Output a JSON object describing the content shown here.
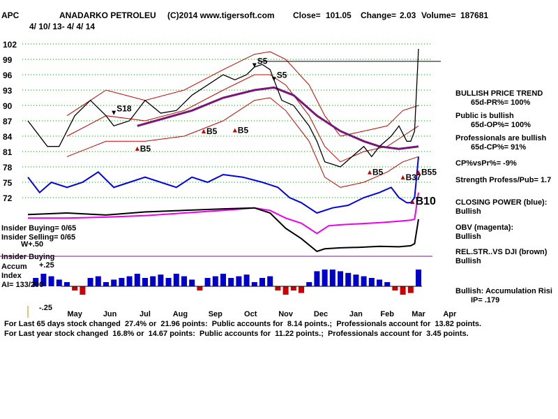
{
  "header": {
    "ticker": "APC",
    "company": "ANADARKO PETROLEU",
    "site": "(C)2014 www.tigersoft.com",
    "close_label": "Close=",
    "close_value": "101.05",
    "change_label": "Change=",
    "change_value": "2.03",
    "volume_label": "Volume=",
    "volume_value": "187681",
    "date_range": "4/ 10/ 13- 4/ 4/ 14"
  },
  "colors": {
    "price": "#000000",
    "bands": "#cc0000",
    "ma_long": "#7a147a",
    "closing_power": "#0000ee",
    "obv": "#ee00ee",
    "relstr": "#000000",
    "accum_pos": "#0000cc",
    "accum_neg": "#cc0000",
    "grid": "#009900",
    "signal": "#cc0000"
  },
  "side_panel": {
    "price_trend_title": "BULLISH PRICE TREND",
    "price_trend_value": "65d-PR%= 100%",
    "public_title": "Public is bullish",
    "public_value": "65d-OP%= 100%",
    "pros_title": "Professionals are bullish",
    "pros_value": "65d-CP%= 91%",
    "cpvspr": "CP%vsPr%= -9%",
    "strength": "Strength Profess/Pub= 1.7",
    "closing_power_title": "CLOSING POWER (blue):",
    "closing_power_value": "Bullish",
    "obv_title": "OBV (magenta):",
    "obv_value": "Bullish",
    "relstr_title": "REL.STR..VS DJI (brown)",
    "relstr_value": "Bullish",
    "accum_title": "Bullish: Accumulation Risi",
    "ip_value": "IP= .179"
  },
  "left_labels": {
    "insider_buying_ratio": "Insider Buying= 0/65",
    "insider_selling_ratio": "Insider Selling= 0/65",
    "w_value": "W+.50",
    "insider_buying": "Insider Buying",
    "accum": "Accum",
    "index": "Index",
    "ai": "AI= 133/200",
    "plus25": "+.25",
    "minus25": "-.25"
  },
  "footer": {
    "line1": "For Last 65 days stock changed  27.4% or  21.96 points:  Public accounts for  8.14 points.;  Professionals account for  13.82 points.",
    "line2": "For Last year stock changed  16.8% or  14.67 points:  Public accounts for  11.22 points.;  Professionals account for  3.45 points."
  },
  "chart_data": {
    "type": "line",
    "title": "ANADARKO PETROLEU",
    "price_axis": {
      "ticks": [
        102,
        99,
        96,
        93,
        90,
        87,
        84,
        81,
        78,
        75,
        72
      ],
      "ylim": [
        70,
        104.2
      ]
    },
    "x_ticks": [
      "May",
      "Jun",
      "Jul",
      "Aug",
      "Sep",
      "Oct",
      "Nov",
      "Dec",
      "Jan",
      "Feb",
      "Mar",
      "Apr"
    ],
    "x_tick_positions_t": [
      0.12,
      0.21,
      0.3,
      0.39,
      0.48,
      0.57,
      0.66,
      0.75,
      0.84,
      0.92,
      1.0,
      1.08
    ],
    "price_series": {
      "name": "Price",
      "points": [
        [
          0,
          87
        ],
        [
          0.02,
          85
        ],
        [
          0.05,
          82
        ],
        [
          0.08,
          82
        ],
        [
          0.12,
          88
        ],
        [
          0.16,
          91
        ],
        [
          0.2,
          88
        ],
        [
          0.22,
          86
        ],
        [
          0.26,
          87
        ],
        [
          0.3,
          91
        ],
        [
          0.34,
          88.5
        ],
        [
          0.38,
          89
        ],
        [
          0.42,
          92
        ],
        [
          0.46,
          94
        ],
        [
          0.5,
          96
        ],
        [
          0.53,
          95
        ],
        [
          0.56,
          96
        ],
        [
          0.58,
          97.5
        ],
        [
          0.6,
          98
        ],
        [
          0.62,
          97
        ],
        [
          0.65,
          91
        ],
        [
          0.68,
          90
        ],
        [
          0.72,
          86
        ],
        [
          0.74,
          83
        ],
        [
          0.76,
          79
        ],
        [
          0.78,
          78.5
        ],
        [
          0.8,
          78
        ],
        [
          0.83,
          80
        ],
        [
          0.86,
          82
        ],
        [
          0.88,
          80
        ],
        [
          0.9,
          82
        ],
        [
          0.93,
          84
        ],
        [
          0.95,
          86
        ],
        [
          0.97,
          83
        ],
        [
          0.98,
          83
        ],
        [
          0.99,
          85
        ],
        [
          1.0,
          101.05
        ]
      ]
    },
    "band_upper": {
      "name": "Upper band",
      "points": [
        [
          0.1,
          88
        ],
        [
          0.2,
          93
        ],
        [
          0.3,
          91
        ],
        [
          0.4,
          93
        ],
        [
          0.5,
          97
        ],
        [
          0.58,
          100
        ],
        [
          0.62,
          100.5
        ],
        [
          0.66,
          99
        ],
        [
          0.72,
          94
        ],
        [
          0.76,
          88
        ],
        [
          0.8,
          84
        ],
        [
          0.86,
          85
        ],
        [
          0.92,
          86
        ],
        [
          0.96,
          89
        ],
        [
          1.0,
          90
        ]
      ]
    },
    "band_mid": {
      "name": "Mid band",
      "points": [
        [
          0.1,
          84
        ],
        [
          0.2,
          88
        ],
        [
          0.3,
          87
        ],
        [
          0.4,
          89
        ],
        [
          0.5,
          93
        ],
        [
          0.58,
          96
        ],
        [
          0.62,
          96
        ],
        [
          0.66,
          94
        ],
        [
          0.72,
          88
        ],
        [
          0.76,
          82
        ],
        [
          0.8,
          79
        ],
        [
          0.86,
          81
        ],
        [
          0.92,
          82
        ],
        [
          0.96,
          84
        ],
        [
          1.0,
          86
        ]
      ]
    },
    "band_lower": {
      "name": "Lower band",
      "points": [
        [
          0.1,
          80
        ],
        [
          0.2,
          83
        ],
        [
          0.3,
          83
        ],
        [
          0.4,
          84
        ],
        [
          0.5,
          87
        ],
        [
          0.58,
          91
        ],
        [
          0.62,
          91.5
        ],
        [
          0.66,
          89
        ],
        [
          0.72,
          83
        ],
        [
          0.76,
          76
        ],
        [
          0.8,
          74
        ],
        [
          0.86,
          75
        ],
        [
          0.92,
          77
        ],
        [
          0.96,
          79
        ],
        [
          1.0,
          80
        ]
      ]
    },
    "ma_long": {
      "name": "Long MA",
      "points": [
        [
          0.28,
          86
        ],
        [
          0.35,
          87.5
        ],
        [
          0.42,
          89
        ],
        [
          0.5,
          91.5
        ],
        [
          0.58,
          93
        ],
        [
          0.63,
          93.5
        ],
        [
          0.68,
          92
        ],
        [
          0.74,
          88
        ],
        [
          0.8,
          85
        ],
        [
          0.86,
          83
        ],
        [
          0.9,
          82
        ],
        [
          0.95,
          81.5
        ],
        [
          1.0,
          82
        ]
      ]
    },
    "horizontal_line_value": 98.6,
    "closing_power": {
      "name": "CLOSING POWER (blue)",
      "points": [
        [
          0,
          76
        ],
        [
          0.03,
          73
        ],
        [
          0.06,
          75
        ],
        [
          0.1,
          74
        ],
        [
          0.14,
          75
        ],
        [
          0.18,
          77
        ],
        [
          0.22,
          74
        ],
        [
          0.26,
          75
        ],
        [
          0.3,
          76
        ],
        [
          0.34,
          75
        ],
        [
          0.38,
          74
        ],
        [
          0.42,
          76
        ],
        [
          0.46,
          75
        ],
        [
          0.5,
          76.5
        ],
        [
          0.55,
          76
        ],
        [
          0.6,
          75
        ],
        [
          0.64,
          74
        ],
        [
          0.67,
          72
        ],
        [
          0.7,
          71
        ],
        [
          0.72,
          70
        ],
        [
          0.74,
          69
        ],
        [
          0.78,
          70
        ],
        [
          0.82,
          70.5
        ],
        [
          0.86,
          72
        ],
        [
          0.9,
          73
        ],
        [
          0.93,
          74
        ],
        [
          0.95,
          72
        ],
        [
          0.97,
          71
        ],
        [
          0.98,
          71
        ],
        [
          0.99,
          72
        ],
        [
          1.0,
          80
        ]
      ]
    },
    "obv": {
      "name": "OBV (magenta)",
      "points": [
        [
          0,
          68
        ],
        [
          0.1,
          68
        ],
        [
          0.2,
          68.2
        ],
        [
          0.3,
          68.5
        ],
        [
          0.4,
          69
        ],
        [
          0.5,
          69.5
        ],
        [
          0.58,
          70
        ],
        [
          0.62,
          69.5
        ],
        [
          0.66,
          68
        ],
        [
          0.7,
          67
        ],
        [
          0.74,
          65
        ],
        [
          0.77,
          66.5
        ],
        [
          0.8,
          66.7
        ],
        [
          0.85,
          66.9
        ],
        [
          0.9,
          67.1
        ],
        [
          0.95,
          67.4
        ],
        [
          0.98,
          67.6
        ],
        [
          0.99,
          67.8
        ],
        [
          1.0,
          73
        ]
      ]
    },
    "relstr": {
      "name": "REL.STR..VS DJI (brown)",
      "points": [
        [
          0,
          68.7
        ],
        [
          0.1,
          69
        ],
        [
          0.2,
          68.6
        ],
        [
          0.3,
          69.2
        ],
        [
          0.4,
          69.5
        ],
        [
          0.5,
          69.8
        ],
        [
          0.58,
          70
        ],
        [
          0.62,
          69
        ],
        [
          0.66,
          66
        ],
        [
          0.7,
          64
        ],
        [
          0.74,
          61.5
        ],
        [
          0.76,
          62
        ],
        [
          0.8,
          62.2
        ],
        [
          0.85,
          62.3
        ],
        [
          0.9,
          62.5
        ],
        [
          0.95,
          62.4
        ],
        [
          0.98,
          62.6
        ],
        [
          0.99,
          63
        ],
        [
          1.0,
          67.8
        ]
      ]
    },
    "accumulation_index": {
      "name": "Accum Index",
      "yticks": [
        "+.25",
        "-.25"
      ],
      "t": [
        0.02,
        0.04,
        0.06,
        0.08,
        0.1,
        0.12,
        0.14,
        0.16,
        0.18,
        0.2,
        0.22,
        0.24,
        0.26,
        0.28,
        0.3,
        0.32,
        0.34,
        0.36,
        0.38,
        0.4,
        0.42,
        0.44,
        0.46,
        0.48,
        0.5,
        0.52,
        0.54,
        0.56,
        0.58,
        0.6,
        0.62,
        0.64,
        0.66,
        0.68,
        0.7,
        0.72,
        0.74,
        0.76,
        0.78,
        0.8,
        0.82,
        0.84,
        0.86,
        0.88,
        0.9,
        0.92,
        0.94,
        0.96,
        0.98,
        1.0
      ],
      "values": [
        0.1,
        0.15,
        0.12,
        0.08,
        0.05,
        -0.05,
        -0.1,
        0.1,
        0.12,
        0.05,
        0.08,
        0.1,
        0.12,
        0.15,
        0.1,
        0.12,
        0.14,
        0.1,
        0.15,
        0.12,
        0.08,
        -0.05,
        0.1,
        0.12,
        0.15,
        0.1,
        0.12,
        0.14,
        0.05,
        0.1,
        0.12,
        -0.05,
        -0.1,
        -0.05,
        -0.08,
        0.05,
        0.18,
        0.2,
        0.2,
        0.18,
        0.16,
        0.14,
        0.12,
        0.1,
        0.08,
        0.05,
        -0.05,
        -0.1,
        -0.08,
        0.2
      ]
    },
    "signals": [
      {
        "label": "S18",
        "t": 0.22,
        "price": 89.5
      },
      {
        "label": "B5",
        "t": 0.28,
        "price": 81.7
      },
      {
        "label": "B5",
        "t": 0.45,
        "price": 85.1
      },
      {
        "label": "B5",
        "t": 0.53,
        "price": 85.3
      },
      {
        "label": "S5",
        "t": 0.58,
        "price": 98.8
      },
      {
        "label": "S5",
        "t": 0.63,
        "price": 96.1
      },
      {
        "label": "B5",
        "t": 0.875,
        "price": 77.1
      },
      {
        "label": "B37",
        "t": 0.96,
        "price": 76.1
      },
      {
        "label": "B55",
        "t": 1.0,
        "price": 77.1
      },
      {
        "label": "B10",
        "t": 0.985,
        "price": 71.3
      }
    ]
  }
}
